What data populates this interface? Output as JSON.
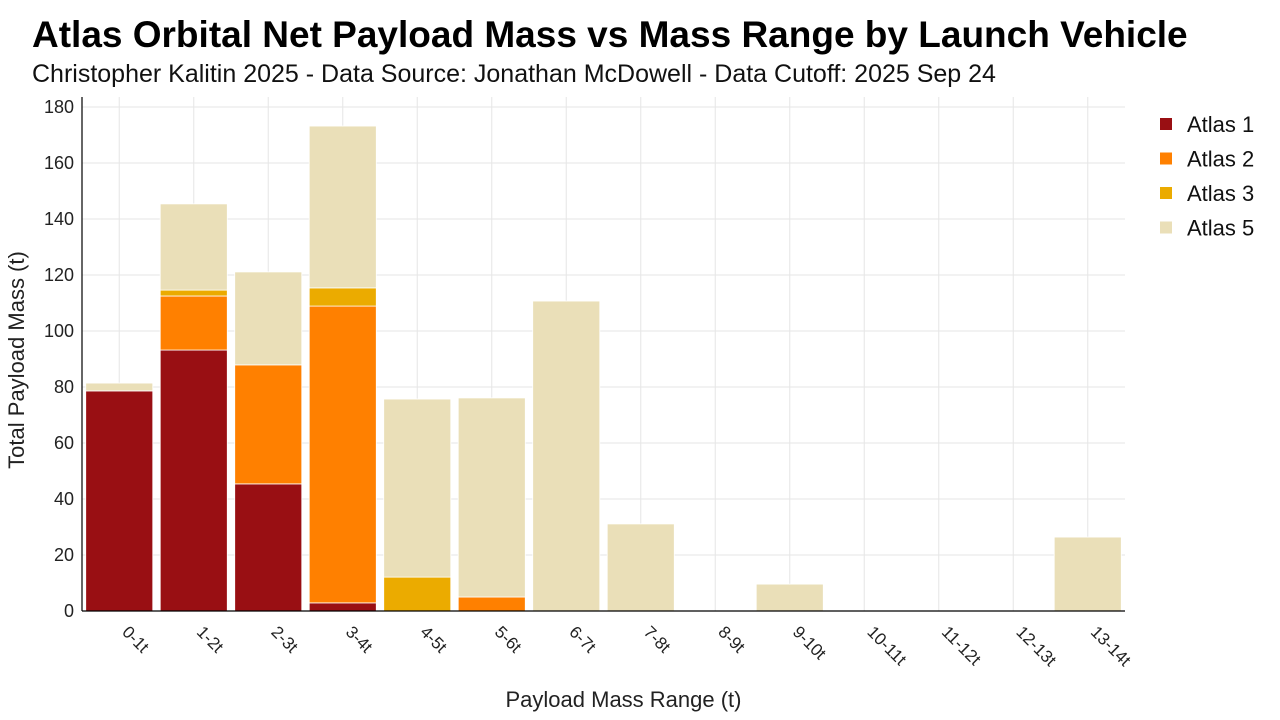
{
  "chart_data": {
    "type": "bar",
    "stacked": true,
    "title": "Atlas Orbital Net Payload Mass vs Mass Range by Launch Vehicle",
    "subtitle": "Christopher Kalitin 2025 - Data Source: Jonathan McDowell - Data Cutoff: 2025 Sep 24",
    "xlabel": "Payload Mass Range (t)",
    "ylabel": "Total Payload Mass (t)",
    "ylim": [
      0,
      180
    ],
    "yticks": [
      0,
      20,
      40,
      60,
      80,
      100,
      120,
      140,
      160,
      180
    ],
    "grid": true,
    "legend_position": "top-right",
    "categories": [
      "0-1t",
      "1-2t",
      "2-3t",
      "3-4t",
      "4-5t",
      "5-6t",
      "6-7t",
      "7-8t",
      "8-9t",
      "9-10t",
      "10-11t",
      "11-12t",
      "12-13t",
      "13-14t"
    ],
    "series": [
      {
        "name": "Atlas 1",
        "color": "#990f13",
        "values": [
          78.6,
          93.2,
          45.4,
          2.9,
          0,
          0,
          0,
          0,
          0,
          0,
          0,
          0,
          0,
          0
        ]
      },
      {
        "name": "Atlas 2",
        "color": "#ff8000",
        "values": [
          0,
          19.3,
          42.5,
          106.0,
          0,
          5.0,
          0,
          0,
          0,
          0,
          0,
          0,
          0,
          0
        ]
      },
      {
        "name": "Atlas 3",
        "color": "#ebab00",
        "values": [
          0,
          2.1,
          0,
          6.5,
          12.1,
          0,
          0,
          0,
          0,
          0,
          0,
          0,
          0,
          0
        ]
      },
      {
        "name": "Atlas 5",
        "color": "#eadfb8",
        "values": [
          2.8,
          30.8,
          33.2,
          57.8,
          63.6,
          71.1,
          110.7,
          31.1,
          0,
          9.6,
          0,
          0,
          0,
          26.4
        ]
      }
    ]
  }
}
